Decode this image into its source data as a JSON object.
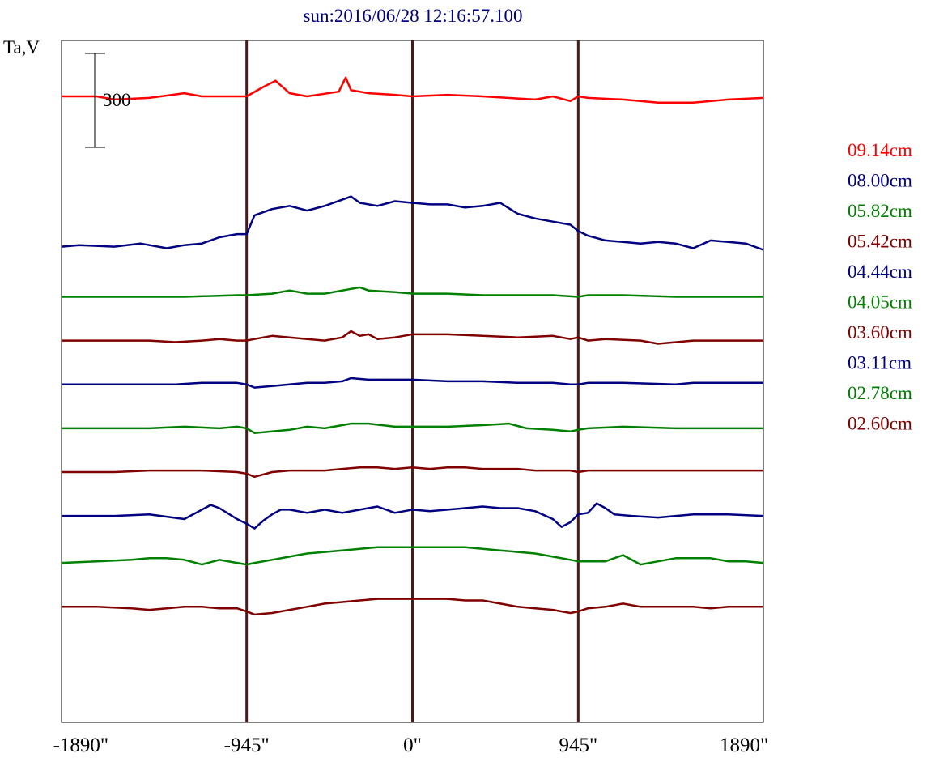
{
  "chart_data": {
    "type": "line",
    "title": "sun:2016/06/28 12:16:57.100",
    "ylabel": "Ta,V",
    "xlim": [
      -2000,
      2000
    ],
    "x_ticks": [
      {
        "value": -1890,
        "label": "-1890\""
      },
      {
        "value": -945,
        "label": "-945\""
      },
      {
        "value": 0,
        "label": "0\""
      },
      {
        "value": 945,
        "label": "945\""
      },
      {
        "value": 1890,
        "label": "1890\""
      }
    ],
    "vertical_lines": [
      -945,
      0,
      945
    ],
    "scale_bar": {
      "label": "300",
      "value": 300
    },
    "legend_position": "right",
    "series": [
      {
        "name": "09.14cm",
        "color": "#ff0000",
        "baseline": 300,
        "x": [
          -2000,
          -1800,
          -1700,
          -1500,
          -1300,
          -1200,
          -1000,
          -945,
          -850,
          -780,
          -700,
          -600,
          -420,
          -380,
          -350,
          -250,
          -100,
          0,
          200,
          400,
          700,
          800,
          900,
          945,
          1000,
          1200,
          1400,
          1600,
          1800,
          2000
        ],
        "values": [
          0,
          0,
          -10,
          -5,
          10,
          0,
          0,
          0,
          30,
          50,
          10,
          0,
          15,
          60,
          20,
          10,
          5,
          0,
          5,
          0,
          -10,
          0,
          -15,
          0,
          -5,
          -10,
          -20,
          -20,
          -10,
          -5
        ]
      },
      {
        "name": "08.00cm",
        "color": "#000080",
        "baseline": -180,
        "x": [
          -2000,
          -1900,
          -1700,
          -1550,
          -1400,
          -1300,
          -1200,
          -1100,
          -1000,
          -945,
          -900,
          -800,
          -700,
          -600,
          -500,
          -400,
          -350,
          -300,
          -200,
          -100,
          0,
          100,
          200,
          300,
          400,
          500,
          600,
          700,
          800,
          900,
          945,
          1000,
          1100,
          1200,
          1300,
          1400,
          1500,
          1600,
          1700,
          1800,
          1900,
          2000
        ],
        "values": [
          0,
          5,
          0,
          10,
          -5,
          5,
          10,
          30,
          40,
          40,
          100,
          120,
          130,
          115,
          130,
          150,
          160,
          140,
          130,
          145,
          140,
          135,
          135,
          125,
          130,
          140,
          105,
          90,
          80,
          70,
          50,
          35,
          20,
          15,
          10,
          15,
          10,
          -5,
          20,
          15,
          10,
          -10
        ]
      },
      {
        "name": "05.82cm",
        "color": "#008000",
        "baseline": -340,
        "x": [
          -2000,
          -1500,
          -1300,
          -1000,
          -945,
          -800,
          -700,
          -600,
          -500,
          -350,
          -300,
          -250,
          -100,
          0,
          200,
          400,
          600,
          800,
          945,
          1000,
          1200,
          1500,
          2000
        ],
        "values": [
          0,
          0,
          0,
          5,
          5,
          10,
          20,
          10,
          10,
          25,
          30,
          20,
          15,
          10,
          10,
          5,
          5,
          5,
          0,
          5,
          5,
          0,
          0
        ]
      },
      {
        "name": "05.42cm",
        "color": "#800000",
        "baseline": -480,
        "x": [
          -2000,
          -1500,
          -1350,
          -1200,
          -1100,
          -1000,
          -945,
          -900,
          -800,
          -700,
          -600,
          -500,
          -400,
          -350,
          -300,
          -250,
          -200,
          -100,
          0,
          200,
          400,
          600,
          800,
          900,
          945,
          1000,
          1100,
          1300,
          1400,
          1600,
          1800,
          2000
        ],
        "values": [
          0,
          0,
          -5,
          0,
          5,
          0,
          0,
          5,
          15,
          10,
          5,
          0,
          10,
          30,
          15,
          20,
          5,
          10,
          20,
          20,
          15,
          10,
          15,
          5,
          10,
          0,
          5,
          0,
          -10,
          0,
          0,
          0
        ]
      },
      {
        "name": "04.44cm",
        "color": "#000080",
        "baseline": -620,
        "x": [
          -2000,
          -1500,
          -1350,
          -1200,
          -1000,
          -945,
          -900,
          -800,
          -700,
          -600,
          -500,
          -400,
          -350,
          -250,
          -100,
          0,
          200,
          400,
          600,
          800,
          900,
          945,
          1000,
          1200,
          1500,
          1600,
          1800,
          2000
        ],
        "values": [
          0,
          0,
          0,
          5,
          5,
          0,
          -10,
          -5,
          0,
          5,
          5,
          10,
          20,
          15,
          15,
          15,
          10,
          10,
          5,
          5,
          0,
          0,
          5,
          5,
          0,
          5,
          5,
          5
        ]
      },
      {
        "name": "04.05cm",
        "color": "#008000",
        "baseline": -760,
        "x": [
          -2000,
          -1500,
          -1300,
          -1100,
          -1000,
          -945,
          -900,
          -800,
          -700,
          -600,
          -500,
          -400,
          -350,
          -250,
          -100,
          0,
          200,
          400,
          550,
          650,
          800,
          900,
          945,
          1000,
          1200,
          1500,
          1800,
          2000
        ],
        "values": [
          0,
          0,
          5,
          0,
          5,
          0,
          -15,
          -10,
          -5,
          5,
          0,
          10,
          15,
          15,
          5,
          5,
          5,
          10,
          15,
          0,
          -5,
          -10,
          -5,
          0,
          5,
          0,
          0,
          0
        ]
      },
      {
        "name": "03.60cm",
        "color": "#800000",
        "baseline": -900,
        "x": [
          -2000,
          -1700,
          -1500,
          -1200,
          -1000,
          -945,
          -900,
          -800,
          -700,
          -600,
          -500,
          -400,
          -300,
          -200,
          -100,
          0,
          100,
          200,
          300,
          400,
          500,
          600,
          700,
          800,
          900,
          945,
          1000,
          1200,
          1400,
          1600,
          1800,
          2000
        ],
        "values": [
          0,
          0,
          5,
          5,
          0,
          -5,
          -15,
          0,
          5,
          5,
          5,
          10,
          15,
          15,
          10,
          15,
          10,
          15,
          15,
          10,
          10,
          10,
          5,
          5,
          5,
          0,
          5,
          5,
          5,
          5,
          5,
          5
        ]
      },
      {
        "name": "03.11cm",
        "color": "#000080",
        "baseline": -1040,
        "x": [
          -2000,
          -1700,
          -1500,
          -1300,
          -1150,
          -1100,
          -1000,
          -945,
          -900,
          -850,
          -800,
          -750,
          -700,
          -600,
          -500,
          -400,
          -300,
          -200,
          -100,
          0,
          100,
          200,
          300,
          400,
          500,
          600,
          700,
          800,
          850,
          900,
          945,
          1000,
          1050,
          1100,
          1150,
          1250,
          1400,
          1600,
          1800,
          2000
        ],
        "values": [
          0,
          0,
          5,
          -10,
          35,
          25,
          -10,
          -25,
          -40,
          -15,
          5,
          20,
          20,
          10,
          20,
          10,
          20,
          30,
          10,
          20,
          15,
          20,
          25,
          30,
          25,
          25,
          15,
          -10,
          -35,
          -20,
          5,
          10,
          40,
          25,
          5,
          0,
          -5,
          5,
          5,
          0
        ]
      },
      {
        "name": "02.78cm",
        "color": "#008000",
        "baseline": -1190,
        "x": [
          -2000,
          -1800,
          -1600,
          -1500,
          -1400,
          -1300,
          -1200,
          -1100,
          -1000,
          -945,
          -900,
          -800,
          -700,
          -600,
          -500,
          -400,
          -300,
          -200,
          -100,
          0,
          100,
          200,
          300,
          400,
          500,
          600,
          700,
          800,
          900,
          945,
          1000,
          1100,
          1200,
          1300,
          1400,
          1500,
          1600,
          1700,
          1800,
          1900,
          2000
        ],
        "values": [
          0,
          5,
          10,
          15,
          15,
          10,
          -5,
          10,
          0,
          -5,
          0,
          10,
          20,
          30,
          35,
          40,
          45,
          50,
          50,
          50,
          50,
          50,
          50,
          45,
          40,
          35,
          30,
          20,
          10,
          5,
          5,
          5,
          25,
          -5,
          5,
          15,
          15,
          15,
          5,
          5,
          0
        ]
      },
      {
        "name": "02.60cm",
        "color": "#800000",
        "baseline": -1330,
        "x": [
          -2000,
          -1800,
          -1600,
          -1500,
          -1400,
          -1300,
          -1200,
          -1100,
          -1000,
          -945,
          -900,
          -800,
          -700,
          -600,
          -500,
          -400,
          -300,
          -200,
          -100,
          0,
          100,
          200,
          300,
          400,
          500,
          600,
          700,
          800,
          900,
          945,
          1000,
          1100,
          1200,
          1300,
          1400,
          1500,
          1600,
          1700,
          1800,
          1900,
          2000
        ],
        "values": [
          0,
          0,
          -5,
          -10,
          -5,
          0,
          0,
          -5,
          -5,
          -15,
          -25,
          -20,
          -10,
          0,
          10,
          15,
          20,
          25,
          25,
          25,
          25,
          25,
          20,
          20,
          10,
          0,
          -5,
          -10,
          -20,
          -15,
          -5,
          0,
          10,
          0,
          0,
          0,
          0,
          -5,
          0,
          0,
          0
        ]
      }
    ]
  }
}
